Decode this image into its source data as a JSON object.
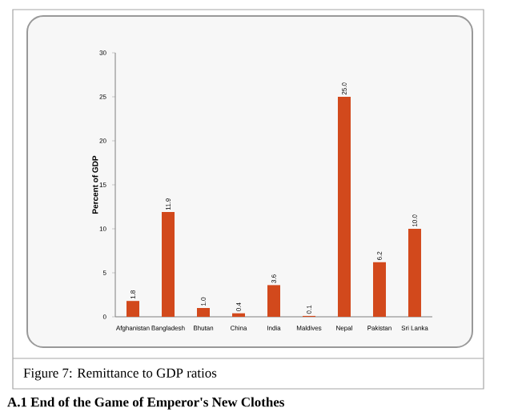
{
  "chart_data": {
    "type": "bar",
    "ylabel": "Percent of GDP",
    "categories": [
      "Afghanistan",
      "Bangladesh",
      "Bhutan",
      "China",
      "India",
      "Maldives",
      "Nepal",
      "Pakistan",
      "Sri Lanka"
    ],
    "values": [
      1.8,
      11.9,
      1.0,
      0.4,
      3.6,
      0.1,
      25.0,
      6.2,
      10.0
    ],
    "color": "#d2491c",
    "ylim": [
      0,
      30
    ],
    "yticks": [
      0,
      5,
      10,
      15,
      20,
      25,
      30
    ],
    "value_labels": [
      "1.8",
      "11.9",
      "1.0",
      "0.4",
      "3.6",
      "0.1",
      "25.0",
      "6.2",
      "10.0"
    ],
    "annotations": [
      "Figure 7: Remittance to GDP ratios",
      "A.1 End of the Game of Emperor's New Clothes"
    ]
  }
}
